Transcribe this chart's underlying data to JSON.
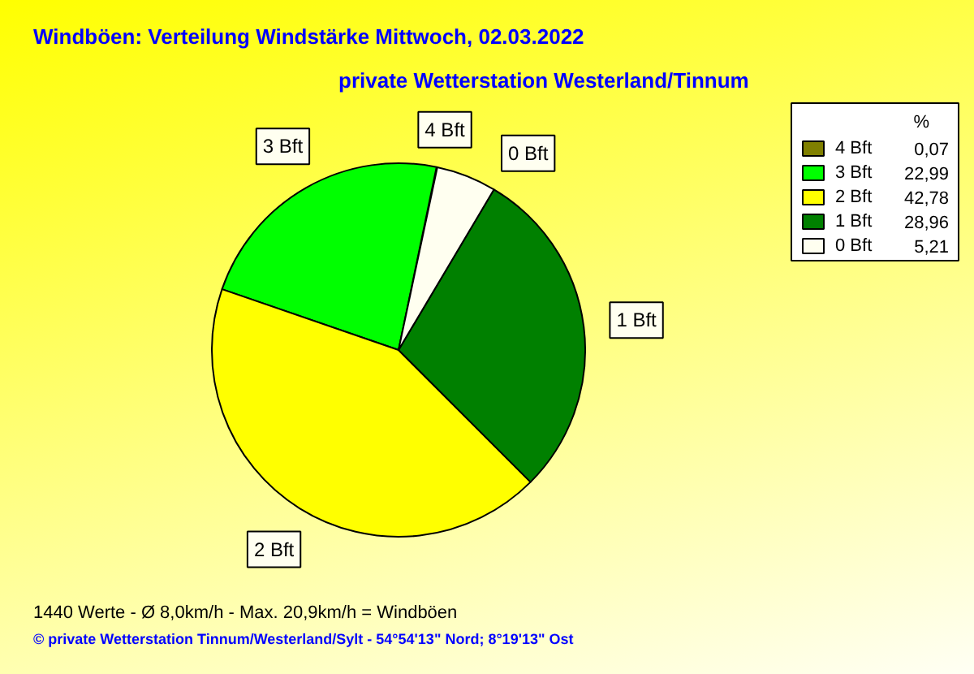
{
  "chart_data": {
    "type": "pie",
    "title": "Windböen: Verteilung Windstärke  Mittwoch, 02.03.2022",
    "subtitle": "private Wetterstation Westerland/Tinnum",
    "categories": [
      "4 Bft",
      "3 Bft",
      "2 Bft",
      "1 Bft",
      "0 Bft"
    ],
    "values": [
      0.07,
      22.99,
      42.78,
      28.96,
      5.21
    ],
    "colors": [
      "#808000",
      "#00ff00",
      "#ffff00",
      "#008000",
      "#fffff0"
    ],
    "value_labels": [
      "0,07",
      "22,99",
      "42,78",
      "28,96",
      "5,21"
    ],
    "legend_title": "%",
    "legend": "top right",
    "annotations": [
      "1440 Werte   -   Ø 8,0km/h  -  Max. 20,9km/h = Windböen",
      "© private Wetterstation Tinnum/Westerland/Sylt  -  54°54'13\" Nord; 8°19'13\" Ost"
    ]
  }
}
